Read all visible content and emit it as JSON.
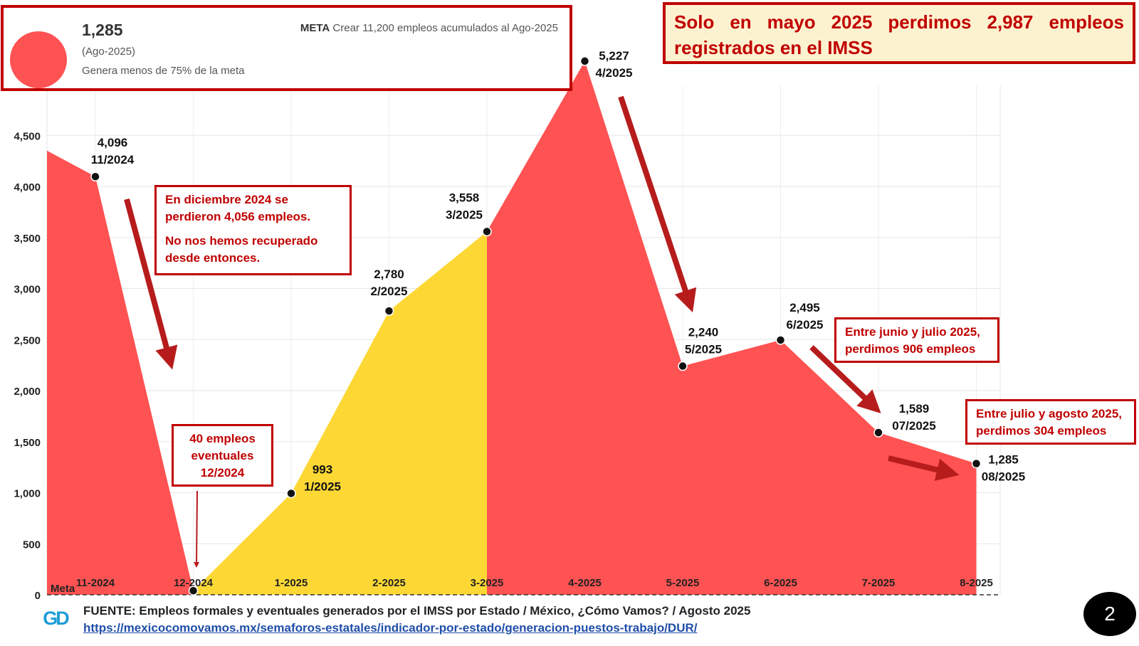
{
  "kpi": {
    "value": "1,285",
    "period": "(Ago-2025)",
    "status": "Genera menos de 75% de la meta",
    "meta_label": "META",
    "meta_text": "Crear 11,200 empleos acumulados al Ago-2025"
  },
  "headline": "Solo en mayo 2025 perdimos 2,987 empleos registrados en el IMSS",
  "notes": {
    "december": [
      "En diciembre 2024 se perdieron 4,056 empleos.",
      "No nos hemos recuperado desde entonces."
    ],
    "eventuales": [
      "40 empleos",
      "eventuales",
      "12/2024"
    ],
    "junio_julio": [
      "Entre junio y julio 2025,",
      "perdimos 906 empleos"
    ],
    "julio_agosto": [
      "Entre julio y agosto 2025,",
      "perdimos 304 empleos"
    ]
  },
  "footer": {
    "source": "FUENTE: Empleos formales y eventuales generados por el IMSS por Estado / México, ¿Cómo Vamos? / Agosto 2025",
    "url": "https://mexicocomovamos.mx/semaforos-estatales/indicador-por-estado/generacion-puestos-trabajo/DUR/",
    "logo": "GD",
    "page_number": "2"
  },
  "colors": {
    "red": "#ff5252",
    "yellow": "#fdd835",
    "dark_red": "#c00000",
    "annotation_red": "#b71c1c"
  },
  "chart_data": {
    "type": "area",
    "categories": [
      "11-2024",
      "12-2024",
      "1-2025",
      "2-2025",
      "3-2025",
      "4-2025",
      "5-2025",
      "6-2025",
      "7-2025",
      "8-2025"
    ],
    "values": [
      4096,
      40,
      993,
      2780,
      3558,
      5227,
      2240,
      2495,
      1589,
      1285
    ],
    "point_labels": [
      [
        "4,096",
        "11/2024"
      ],
      [
        "",
        ""
      ],
      [
        "993",
        "1/2025"
      ],
      [
        "2,780",
        "2/2025"
      ],
      [
        "3,558",
        "3/2025"
      ],
      [
        "5,227",
        "4/2025"
      ],
      [
        "2,240",
        "5/2025"
      ],
      [
        "2,495",
        "6/2025"
      ],
      [
        "1,589",
        "07/2025"
      ],
      [
        "1,285",
        "08/2025"
      ]
    ],
    "leading_value": 4350,
    "segment_colors": [
      "red",
      "red",
      "yellow",
      "yellow",
      "yellow",
      "red",
      "red",
      "red",
      "red",
      "red"
    ],
    "yticks": [
      0,
      500,
      1000,
      1500,
      2000,
      2500,
      3000,
      3500,
      4000,
      4500
    ],
    "ytick_labels": [
      "0",
      "500",
      "1,000",
      "1,500",
      "2,000",
      "2,500",
      "3,000",
      "3,500",
      "4,000",
      "4,500"
    ],
    "ylim": [
      0,
      5400
    ],
    "meta_line_label": "Meta",
    "meta_line_value": 0
  }
}
